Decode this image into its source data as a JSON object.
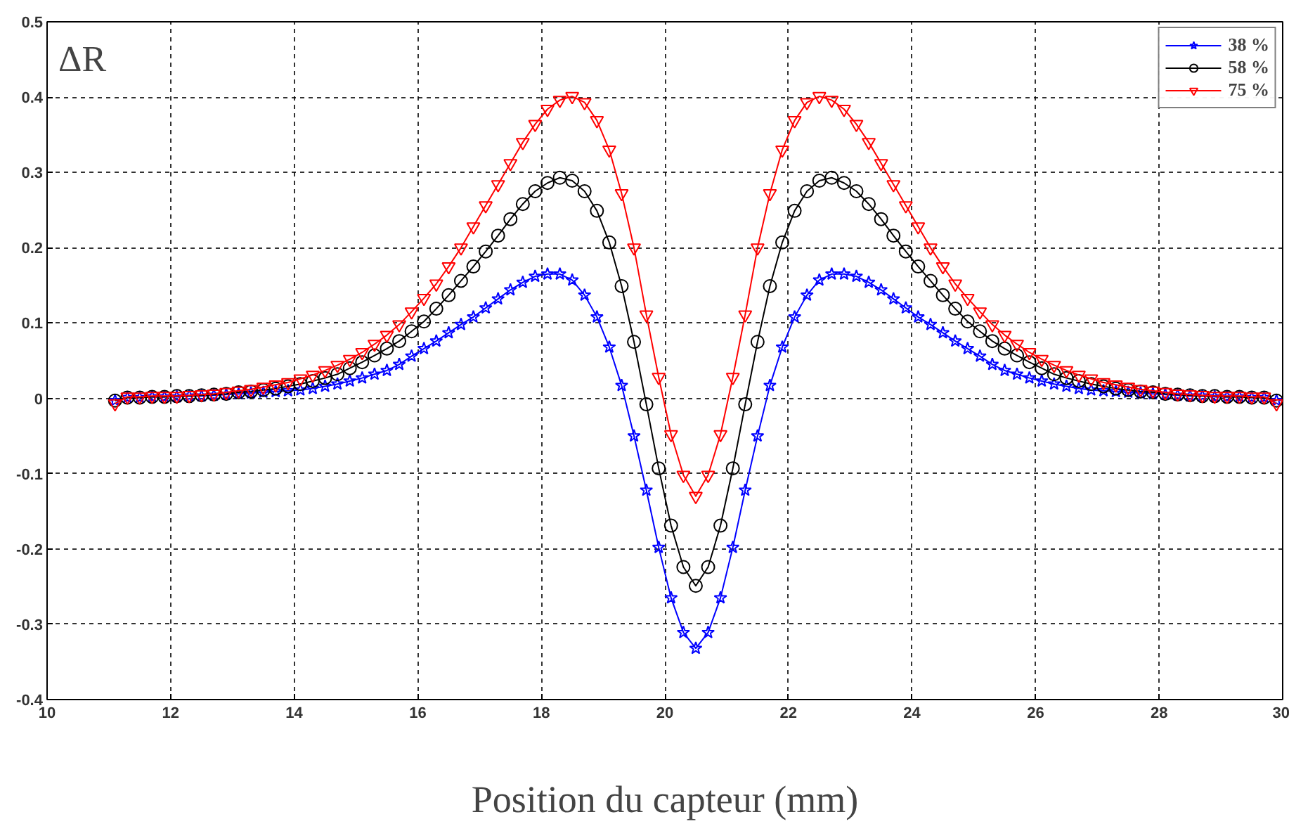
{
  "chart_data": {
    "type": "line",
    "xlabel": "Position du capteur (mm)",
    "annotations": [
      "ΔR"
    ],
    "x": [
      11.1,
      11.3,
      11.5,
      11.7,
      11.9,
      12.1,
      12.3,
      12.5,
      12.7,
      12.9,
      13.1,
      13.3,
      13.5,
      13.7,
      13.9,
      14.1,
      14.3,
      14.5,
      14.7,
      14.9,
      15.1,
      15.3,
      15.5,
      15.7,
      15.9,
      16.1,
      16.3,
      16.5,
      16.7,
      16.9,
      17.1,
      17.3,
      17.5,
      17.7,
      17.9,
      18.1,
      18.3,
      18.5,
      18.7,
      18.9,
      19.1,
      19.3,
      19.5,
      19.7,
      19.9,
      20.1,
      20.3,
      20.5,
      20.7,
      20.9,
      21.1,
      21.3,
      21.5,
      21.7,
      21.9,
      22.1,
      22.3,
      22.5,
      22.7,
      22.9,
      23.1,
      23.3,
      23.5,
      23.7,
      23.9,
      24.1,
      24.3,
      24.5,
      24.7,
      24.9,
      25.1,
      25.3,
      25.5,
      25.7,
      25.9,
      26.1,
      26.3,
      26.5,
      26.7,
      26.9,
      27.1,
      27.3,
      27.5,
      27.7,
      27.9,
      28.1,
      28.3,
      28.5,
      28.7,
      28.9,
      29.1,
      29.3,
      29.5,
      29.7,
      29.9
    ],
    "series": [
      {
        "name": "38 %",
        "color": "#0000ff",
        "marker": "star",
        "values": [
          -0.003,
          0.001,
          0.001,
          0.002,
          0.002,
          0.002,
          0.003,
          0.003,
          0.004,
          0.005,
          0.006,
          0.007,
          0.008,
          0.009,
          0.01,
          0.011,
          0.013,
          0.016,
          0.019,
          0.023,
          0.027,
          0.032,
          0.037,
          0.045,
          0.056,
          0.066,
          0.076,
          0.087,
          0.098,
          0.108,
          0.12,
          0.132,
          0.144,
          0.154,
          0.162,
          0.165,
          0.165,
          0.157,
          0.137,
          0.108,
          0.068,
          0.017,
          -0.05,
          -0.122,
          -0.198,
          -0.265,
          -0.311,
          -0.332,
          -0.311,
          -0.265,
          -0.198,
          -0.122,
          -0.05,
          0.017,
          0.068,
          0.108,
          0.137,
          0.157,
          0.165,
          0.165,
          0.162,
          0.154,
          0.144,
          0.132,
          0.12,
          0.108,
          0.098,
          0.087,
          0.076,
          0.066,
          0.056,
          0.045,
          0.037,
          0.032,
          0.027,
          0.023,
          0.019,
          0.016,
          0.013,
          0.011,
          0.01,
          0.009,
          0.008,
          0.007,
          0.006,
          0.005,
          0.004,
          0.003,
          0.003,
          0.002,
          0.002,
          0.002,
          0.001,
          0.001,
          -0.003
        ]
      },
      {
        "name": "58 %",
        "color": "#000000",
        "marker": "circle",
        "values": [
          -0.003,
          0.001,
          0.001,
          0.002,
          0.002,
          0.003,
          0.003,
          0.004,
          0.005,
          0.006,
          0.008,
          0.009,
          0.011,
          0.013,
          0.016,
          0.019,
          0.023,
          0.027,
          0.032,
          0.04,
          0.048,
          0.057,
          0.066,
          0.076,
          0.089,
          0.102,
          0.119,
          0.137,
          0.156,
          0.175,
          0.195,
          0.216,
          0.238,
          0.258,
          0.275,
          0.286,
          0.293,
          0.289,
          0.275,
          0.249,
          0.207,
          0.149,
          0.075,
          -0.008,
          -0.093,
          -0.169,
          -0.224,
          -0.249,
          -0.224,
          -0.169,
          -0.093,
          -0.008,
          0.075,
          0.149,
          0.207,
          0.249,
          0.275,
          0.289,
          0.293,
          0.286,
          0.275,
          0.258,
          0.238,
          0.216,
          0.195,
          0.175,
          0.156,
          0.137,
          0.119,
          0.102,
          0.089,
          0.076,
          0.066,
          0.057,
          0.048,
          0.04,
          0.032,
          0.027,
          0.023,
          0.019,
          0.016,
          0.013,
          0.011,
          0.009,
          0.008,
          0.006,
          0.005,
          0.004,
          0.003,
          0.003,
          0.002,
          0.002,
          0.001,
          0.001,
          -0.003
        ]
      },
      {
        "name": "75 %",
        "color": "#ff0000",
        "marker": "triangle",
        "values": [
          -0.007,
          0.002,
          0.002,
          0.003,
          0.003,
          0.003,
          0.004,
          0.005,
          0.006,
          0.008,
          0.01,
          0.012,
          0.015,
          0.018,
          0.021,
          0.026,
          0.031,
          0.037,
          0.044,
          0.052,
          0.061,
          0.072,
          0.084,
          0.098,
          0.115,
          0.133,
          0.152,
          0.175,
          0.2,
          0.228,
          0.256,
          0.284,
          0.312,
          0.34,
          0.364,
          0.384,
          0.396,
          0.401,
          0.393,
          0.369,
          0.33,
          0.272,
          0.2,
          0.111,
          0.028,
          -0.048,
          -0.102,
          -0.13,
          -0.102,
          -0.048,
          0.028,
          0.111,
          0.2,
          0.272,
          0.33,
          0.369,
          0.393,
          0.401,
          0.396,
          0.384,
          0.364,
          0.34,
          0.312,
          0.284,
          0.256,
          0.228,
          0.2,
          0.175,
          0.152,
          0.133,
          0.115,
          0.098,
          0.084,
          0.072,
          0.061,
          0.052,
          0.044,
          0.037,
          0.031,
          0.026,
          0.021,
          0.018,
          0.015,
          0.012,
          0.01,
          0.008,
          0.006,
          0.005,
          0.004,
          0.003,
          0.003,
          0.003,
          0.002,
          0.002,
          -0.007
        ]
      }
    ],
    "xlim": [
      10,
      30
    ],
    "ylim": [
      -0.4,
      0.5
    ],
    "xticks": [
      10,
      12,
      14,
      16,
      18,
      20,
      22,
      24,
      26,
      28,
      30
    ],
    "yticks": [
      -0.4,
      -0.3,
      -0.2,
      -0.1,
      0,
      0.1,
      0.2,
      0.3,
      0.4,
      0.5
    ],
    "grid": true,
    "legend": "top right",
    "line_style": "solid"
  }
}
